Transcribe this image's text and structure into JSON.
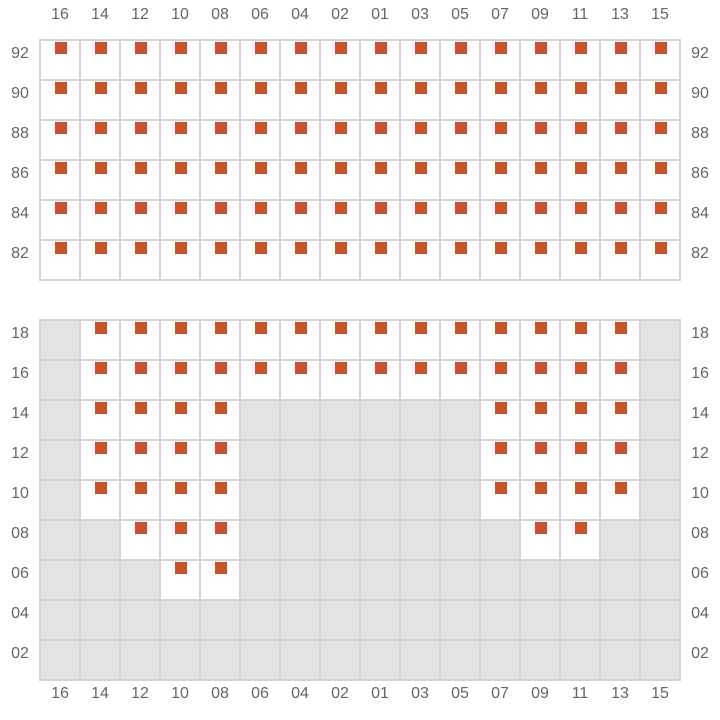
{
  "colors": {
    "seat": "#cc5128",
    "unavailable": "#e3e3e5",
    "grid_line": "#d4d4d8"
  },
  "columns": [
    "16",
    "14",
    "12",
    "10",
    "08",
    "06",
    "04",
    "02",
    "01",
    "03",
    "05",
    "07",
    "09",
    "11",
    "13",
    "15"
  ],
  "upper": {
    "rows": [
      {
        "label": "92",
        "seats": [
          "16",
          "14",
          "12",
          "10",
          "08",
          "06",
          "04",
          "02",
          "01",
          "03",
          "05",
          "07",
          "09",
          "11",
          "13",
          "15"
        ]
      },
      {
        "label": "90",
        "seats": [
          "16",
          "14",
          "12",
          "10",
          "08",
          "06",
          "04",
          "02",
          "01",
          "03",
          "05",
          "07",
          "09",
          "11",
          "13",
          "15"
        ]
      },
      {
        "label": "88",
        "seats": [
          "16",
          "14",
          "12",
          "10",
          "08",
          "06",
          "04",
          "02",
          "01",
          "03",
          "05",
          "07",
          "09",
          "11",
          "13",
          "15"
        ]
      },
      {
        "label": "86",
        "seats": [
          "16",
          "14",
          "12",
          "10",
          "08",
          "06",
          "04",
          "02",
          "01",
          "03",
          "05",
          "07",
          "09",
          "11",
          "13",
          "15"
        ]
      },
      {
        "label": "84",
        "seats": [
          "16",
          "14",
          "12",
          "10",
          "08",
          "06",
          "04",
          "02",
          "01",
          "03",
          "05",
          "07",
          "09",
          "11",
          "13",
          "15"
        ]
      },
      {
        "label": "82",
        "seats": [
          "16",
          "14",
          "12",
          "10",
          "08",
          "06",
          "04",
          "02",
          "01",
          "03",
          "05",
          "07",
          "09",
          "11",
          "13",
          "15"
        ]
      }
    ]
  },
  "lower": {
    "rows": [
      {
        "label": "18",
        "seats": [
          "14",
          "12",
          "10",
          "08",
          "06",
          "04",
          "02",
          "01",
          "03",
          "05",
          "07",
          "09",
          "11",
          "13"
        ]
      },
      {
        "label": "16",
        "seats": [
          "14",
          "12",
          "10",
          "08",
          "06",
          "04",
          "02",
          "01",
          "03",
          "05",
          "07",
          "09",
          "11",
          "13"
        ]
      },
      {
        "label": "14",
        "seats": [
          "14",
          "12",
          "10",
          "08",
          "07",
          "09",
          "11",
          "13"
        ]
      },
      {
        "label": "12",
        "seats": [
          "14",
          "12",
          "10",
          "08",
          "07",
          "09",
          "11",
          "13"
        ]
      },
      {
        "label": "10",
        "seats": [
          "14",
          "12",
          "10",
          "08",
          "07",
          "09",
          "11",
          "13"
        ]
      },
      {
        "label": "08",
        "seats": [
          "12",
          "10",
          "08",
          "09",
          "11"
        ]
      },
      {
        "label": "06",
        "seats": [
          "10",
          "08"
        ]
      },
      {
        "label": "04",
        "seats": []
      },
      {
        "label": "02",
        "seats": []
      }
    ]
  }
}
